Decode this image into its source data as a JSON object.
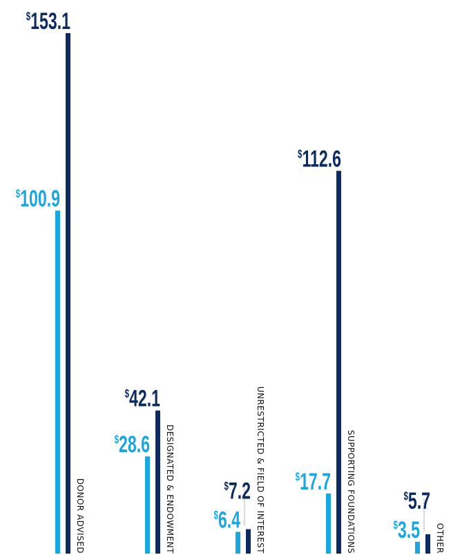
{
  "chart_data": {
    "type": "bar",
    "categories": [
      "DONOR ADVISED",
      "DESIGNATED & ENDOWMENT",
      "UNRESTRICTED & FIELD OF INTEREST",
      "SUPPORTING FOUNDATIONS",
      "OTHER"
    ],
    "series": [
      {
        "color": "#1aa7e1",
        "values": [
          100.9,
          28.6,
          6.4,
          17.7,
          3.5
        ],
        "value_labels": [
          "$100.9",
          "$28.6",
          "$6.4",
          "$17.7",
          "$3.5"
        ]
      },
      {
        "color": "#0c2b60",
        "values": [
          153.1,
          42.1,
          7.2,
          112.6,
          5.7
        ],
        "value_labels": [
          "$153.1",
          "$42.1",
          "$7.2",
          "$112.6",
          "$5.7"
        ]
      }
    ],
    "ylim": [
      0,
      153.1
    ]
  }
}
